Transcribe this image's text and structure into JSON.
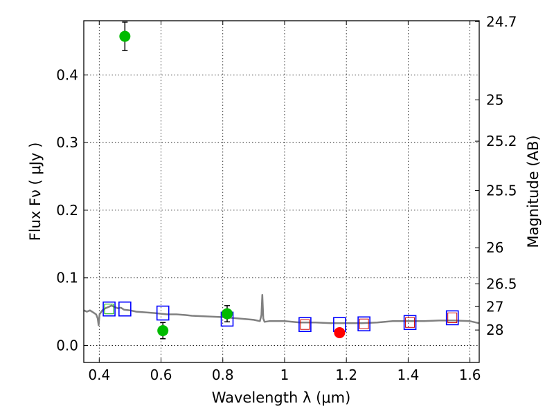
{
  "chart_data": {
    "type": "scatter",
    "xlabel": "Wavelength  λ (μm)",
    "ylabel": "Flux  Fν  ( μJy )",
    "y2label": "Magnitude (AB)",
    "xlim": [
      0.35,
      1.63
    ],
    "ylim": [
      -0.025,
      0.48
    ],
    "grid": true,
    "x_ticks": [
      {
        "value": 0.4,
        "label": "0.4"
      },
      {
        "value": 0.6,
        "label": "0.6"
      },
      {
        "value": 0.8,
        "label": "0.8"
      },
      {
        "value": 1.0,
        "label": "1"
      },
      {
        "value": 1.2,
        "label": "1.2"
      },
      {
        "value": 1.4,
        "label": "1.4"
      },
      {
        "value": 1.6,
        "label": "1.6"
      }
    ],
    "y_ticks": [
      {
        "value": 0.0,
        "label": "0.0"
      },
      {
        "value": 0.1,
        "label": "0.1"
      },
      {
        "value": 0.2,
        "label": "0.2"
      },
      {
        "value": 0.3,
        "label": "0.3"
      },
      {
        "value": 0.4,
        "label": "0.4"
      }
    ],
    "y2_ticks": [
      {
        "mag": 24.7,
        "label": "24.7"
      },
      {
        "mag": 25.0,
        "label": "25"
      },
      {
        "mag": 25.2,
        "label": "25.2"
      },
      {
        "mag": 25.5,
        "label": "25.5"
      },
      {
        "mag": 26.0,
        "label": "26"
      },
      {
        "mag": 26.5,
        "label": "26.5"
      },
      {
        "mag": 27.0,
        "label": "27"
      },
      {
        "mag": 28.0,
        "label": "28"
      }
    ],
    "series": [
      {
        "marker": "line",
        "color": "#808080",
        "points": [
          [
            0.35,
            0.052
          ],
          [
            0.36,
            0.05
          ],
          [
            0.37,
            0.052
          ],
          [
            0.38,
            0.049
          ],
          [
            0.39,
            0.046
          ],
          [
            0.395,
            0.04
          ],
          [
            0.398,
            0.03
          ],
          [
            0.401,
            0.046
          ],
          [
            0.41,
            0.052
          ],
          [
            0.42,
            0.055
          ],
          [
            0.43,
            0.057
          ],
          [
            0.44,
            0.059
          ],
          [
            0.45,
            0.057
          ],
          [
            0.46,
            0.055
          ],
          [
            0.47,
            0.056
          ],
          [
            0.48,
            0.053
          ],
          [
            0.5,
            0.052
          ],
          [
            0.52,
            0.05
          ],
          [
            0.55,
            0.049
          ],
          [
            0.58,
            0.048
          ],
          [
            0.6,
            0.047
          ],
          [
            0.62,
            0.046
          ],
          [
            0.65,
            0.046
          ],
          [
            0.68,
            0.045
          ],
          [
            0.7,
            0.044
          ],
          [
            0.75,
            0.043
          ],
          [
            0.8,
            0.042
          ],
          [
            0.85,
            0.04
          ],
          [
            0.9,
            0.038
          ],
          [
            0.92,
            0.036
          ],
          [
            0.925,
            0.045
          ],
          [
            0.928,
            0.075
          ],
          [
            0.931,
            0.04
          ],
          [
            0.935,
            0.035
          ],
          [
            0.95,
            0.036
          ],
          [
            1.0,
            0.036
          ],
          [
            1.05,
            0.034
          ],
          [
            1.1,
            0.034
          ],
          [
            1.15,
            0.033
          ],
          [
            1.2,
            0.033
          ],
          [
            1.25,
            0.033
          ],
          [
            1.3,
            0.034
          ],
          [
            1.35,
            0.036
          ],
          [
            1.4,
            0.036
          ],
          [
            1.45,
            0.036
          ],
          [
            1.5,
            0.037
          ],
          [
            1.55,
            0.037
          ],
          [
            1.6,
            0.036
          ],
          [
            1.63,
            0.033
          ]
        ]
      },
      {
        "marker": "square",
        "color": "#0000ff",
        "points": [
          [
            0.432,
            0.054
          ],
          [
            0.483,
            0.054
          ],
          [
            0.606,
            0.048
          ],
          [
            0.814,
            0.039
          ],
          [
            1.066,
            0.031
          ],
          [
            1.178,
            0.031
          ],
          [
            1.257,
            0.032
          ],
          [
            1.406,
            0.034
          ],
          [
            1.543,
            0.041
          ]
        ]
      },
      {
        "marker": "square-small",
        "color": "#00aa00",
        "points": [
          [
            0.432,
            0.054
          ]
        ]
      },
      {
        "marker": "square-small",
        "color": "#cc0000",
        "points": [
          [
            1.066,
            0.031
          ],
          [
            1.257,
            0.032
          ],
          [
            1.406,
            0.034
          ],
          [
            1.543,
            0.041
          ]
        ]
      },
      {
        "marker": "circle",
        "color": "#00bb00",
        "points": [
          [
            0.483,
            0.457,
            0.021
          ],
          [
            0.606,
            0.022,
            0.012
          ],
          [
            0.814,
            0.047,
            0.012
          ]
        ]
      },
      {
        "marker": "circle",
        "color": "#ff0000",
        "points": [
          [
            1.178,
            0.019,
            0.004
          ]
        ]
      }
    ]
  }
}
